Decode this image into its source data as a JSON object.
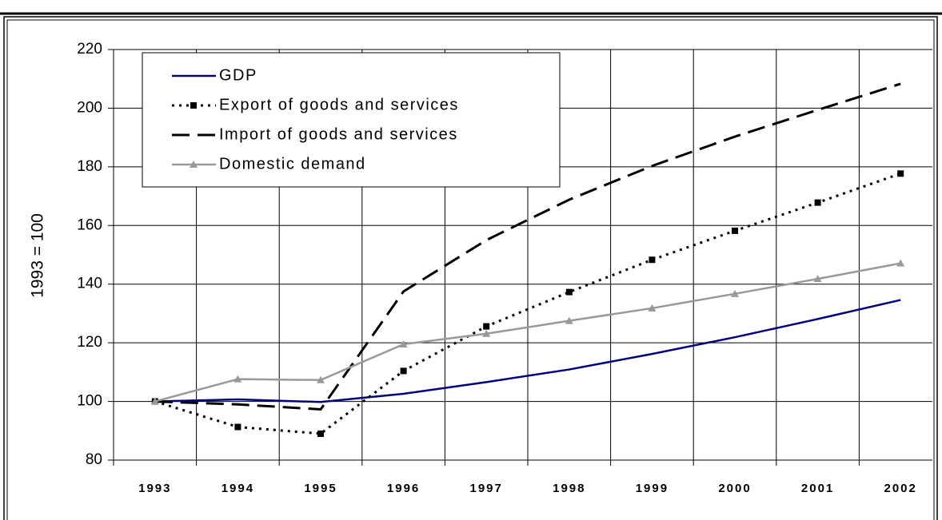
{
  "chart_data": {
    "type": "line",
    "categories": [
      "1993",
      "1994",
      "1995",
      "1996",
      "1997",
      "1998",
      "1999",
      "2000",
      "2001",
      "2002"
    ],
    "y_label": "1993 = 100",
    "ylim": [
      80,
      220
    ],
    "yticks": [
      80,
      100,
      120,
      140,
      160,
      180,
      200,
      220
    ],
    "grid": true,
    "legend": "top-left",
    "series": [
      {
        "name": "GDP",
        "color": "#000080",
        "dash": "solid",
        "marker": "none",
        "values": [
          100,
          100.7,
          99.8,
          102.6,
          106.6,
          110.9,
          116.2,
          121.9,
          128.1,
          134.6
        ]
      },
      {
        "name": "Export of goods and services",
        "color": "#000000",
        "dash": "dotted",
        "marker": "square",
        "values": [
          100,
          91.3,
          89,
          110.4,
          125.6,
          137.3,
          148.3,
          158.2,
          167.8,
          177.7
        ]
      },
      {
        "name": "Import of goods and services",
        "color": "#000000",
        "dash": "dashed",
        "marker": "none",
        "values": [
          100,
          99,
          97.3,
          137.5,
          155,
          168.8,
          180.3,
          190.3,
          199.4,
          208.3
        ]
      },
      {
        "name": "Domestic demand",
        "color": "#999999",
        "dash": "solid",
        "marker": "triangle",
        "values": [
          100,
          107.6,
          107.3,
          119.5,
          123.1,
          127.5,
          131.8,
          136.7,
          141.8,
          147.1
        ]
      }
    ]
  }
}
